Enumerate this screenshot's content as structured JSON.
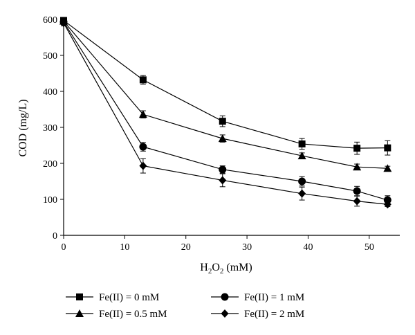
{
  "chart_data": {
    "type": "line",
    "title": "",
    "xlabel": "H2O2 (mM)",
    "xlabel_parts": {
      "main": "H",
      "sub1": "2",
      "mid": "O",
      "sub2": "2",
      "rest": " (mM)"
    },
    "ylabel": "COD (mg/L)",
    "xlim": [
      0,
      55
    ],
    "ylim": [
      0,
      600
    ],
    "xticks": [
      0,
      10,
      20,
      30,
      40,
      50
    ],
    "yticks": [
      0,
      100,
      200,
      300,
      400,
      500,
      600
    ],
    "grid": false,
    "legend_position": "bottom",
    "marker_color": "#000000",
    "series": [
      {
        "name": "Fe(II) = 0 mM",
        "marker": "square",
        "x": [
          0,
          13,
          26,
          39,
          48,
          53
        ],
        "y": [
          597,
          432,
          317,
          254,
          242,
          243
        ],
        "err": [
          8,
          12,
          15,
          15,
          17,
          20
        ]
      },
      {
        "name": "Fe(II) = 0.5 mM",
        "marker": "triangle",
        "x": [
          0,
          13,
          26,
          39,
          48,
          53
        ],
        "y": [
          595,
          336,
          269,
          221,
          190,
          186
        ],
        "err": [
          8,
          10,
          10,
          8,
          8,
          6
        ]
      },
      {
        "name": "Fe(II) = 1 mM",
        "marker": "circle",
        "x": [
          0,
          13,
          26,
          39,
          48,
          53
        ],
        "y": [
          593,
          246,
          183,
          150,
          123,
          98
        ],
        "err": [
          8,
          12,
          10,
          13,
          13,
          12
        ]
      },
      {
        "name": "Fe(II) = 2 mM",
        "marker": "diamond",
        "x": [
          0,
          13,
          26,
          39,
          48,
          53
        ],
        "y": [
          590,
          193,
          153,
          116,
          95,
          86
        ],
        "err": [
          8,
          20,
          18,
          18,
          14,
          6
        ]
      }
    ]
  }
}
